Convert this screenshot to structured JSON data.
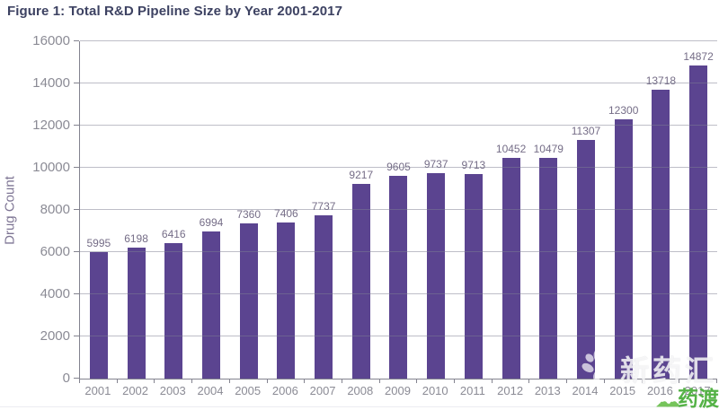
{
  "title": "Figure 1: Total R&D Pipeline Size by Year 2001-2017",
  "chart_data": {
    "type": "bar",
    "title": "Figure 1: Total R&D Pipeline Size by Year 2001-2017",
    "xlabel": "",
    "ylabel": "Drug Count",
    "categories": [
      "2001",
      "2002",
      "2003",
      "2004",
      "2005",
      "2006",
      "2007",
      "2008",
      "2009",
      "2010",
      "2011",
      "2012",
      "2013",
      "2014",
      "2015",
      "2016",
      "2017"
    ],
    "values": [
      5995,
      6198,
      6416,
      6994,
      7360,
      7406,
      7737,
      9217,
      9605,
      9737,
      9713,
      10452,
      10479,
      11307,
      12300,
      13718,
      14872
    ],
    "ylim": [
      0,
      16000
    ],
    "yticks": [
      0,
      2000,
      4000,
      6000,
      8000,
      10000,
      12000,
      14000,
      16000
    ],
    "grid": true,
    "gridlines_over_bars": true,
    "legend": "none",
    "bar_color": "#5b4490",
    "value_labels_shown": true
  },
  "watermarks": {
    "white_logo_text": "新药汇",
    "green_logo_text": "药渡",
    "green_clouds": "☁☁",
    "green_color": "#54b246",
    "white_color": "#ffffff"
  },
  "colors": {
    "title": "#3d4262",
    "axis": "#83838f",
    "tick_label": "#8b8b95",
    "value_label": "#756d87",
    "y_axis_title": "#7e7594",
    "bar": "#5b4490",
    "gridline": "#7d7d91"
  }
}
